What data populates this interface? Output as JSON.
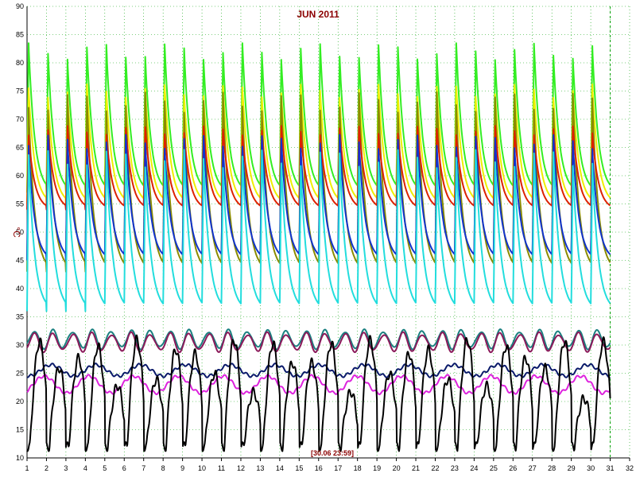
{
  "chart_data": {
    "type": "line",
    "title": "JUN 2011",
    "ylabel": "°C",
    "xlabel": "",
    "timestamp_label": "[30.06 23:59]",
    "xlim": [
      1,
      32
    ],
    "ylim": [
      10,
      90
    ],
    "x_ticks": [
      1,
      2,
      3,
      4,
      5,
      6,
      7,
      8,
      9,
      10,
      11,
      12,
      13,
      14,
      15,
      16,
      17,
      18,
      19,
      20,
      21,
      22,
      23,
      24,
      25,
      26,
      27,
      28,
      29,
      30,
      31,
      32
    ],
    "y_ticks": [
      10,
      15,
      20,
      25,
      30,
      35,
      40,
      45,
      50,
      55,
      60,
      65,
      70,
      75,
      80,
      85,
      90
    ],
    "grid": true,
    "legend": "none",
    "current_marker_x": 31,
    "series": [
      {
        "color": "#33ee22",
        "pattern": "daily_spike",
        "peak": 82,
        "trough": 57
      },
      {
        "color": "#eeee00",
        "pattern": "daily_spike",
        "peak": 75,
        "trough": 55
      },
      {
        "color": "#8b8b00",
        "pattern": "daily_spike",
        "peak": 73,
        "trough": 43
      },
      {
        "color": "#dd2200",
        "pattern": "daily_spike",
        "peak": 68,
        "trough": 54
      },
      {
        "color": "#1133cc",
        "pattern": "daily_spike",
        "peak": 66,
        "trough": 45
      },
      {
        "color": "#22dddd",
        "pattern": "daily_spike",
        "peak": 63,
        "trough": 36
      },
      {
        "color": "#1a8080",
        "pattern": "daily_wave",
        "peak": 32.5,
        "trough": 29.5
      },
      {
        "color": "#8b1a5a",
        "pattern": "daily_wave",
        "peak": 32,
        "trough": 29
      },
      {
        "color": "#0a1a6a",
        "pattern": "slow",
        "peak": 26.5,
        "trough": 24.5
      },
      {
        "color": "#dd22dd",
        "pattern": "slow",
        "peak": 24.5,
        "trough": 21.5
      },
      {
        "color": "#000000",
        "pattern": "outdoor",
        "peak": 31,
        "trough": 12
      }
    ]
  }
}
